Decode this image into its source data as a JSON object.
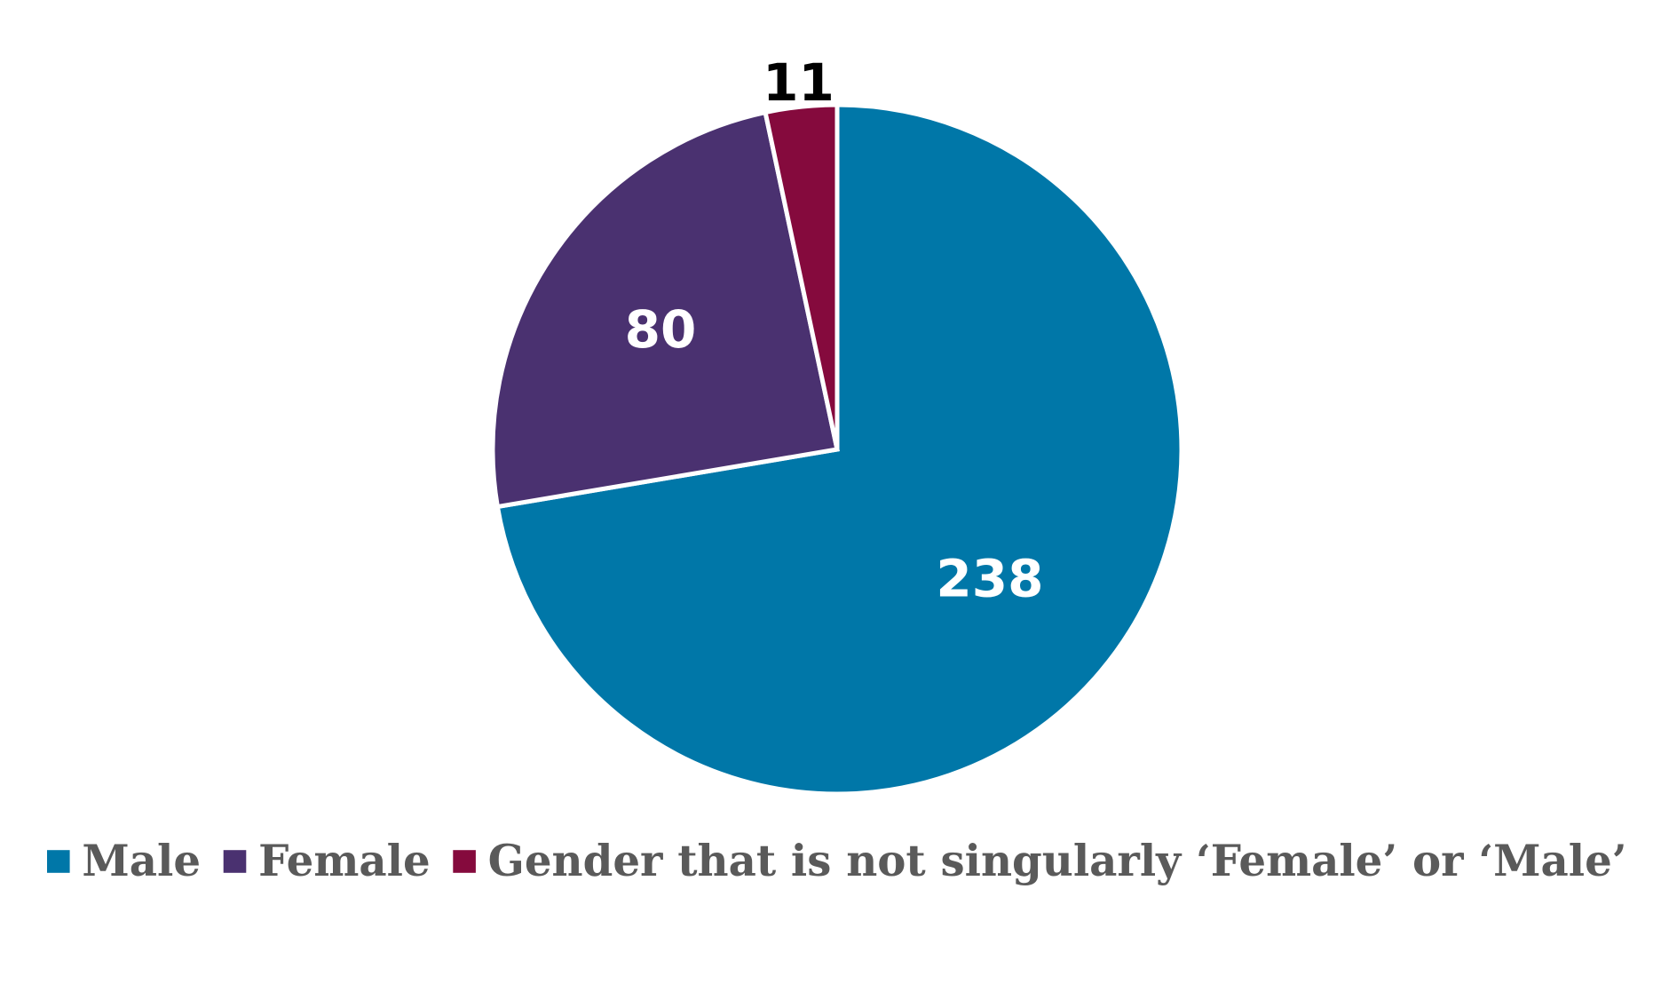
{
  "chart_data": {
    "type": "pie",
    "title": "",
    "start_angle_deg": 0,
    "direction": "clockwise",
    "legend_position": "bottom",
    "slices": [
      {
        "name": "Male",
        "value": 238,
        "color": "#0077a8",
        "label": "238",
        "label_color": "#ffffff"
      },
      {
        "name": "Female",
        "value": 80,
        "color": "#4a3170",
        "label": "80",
        "label_color": "#ffffff"
      },
      {
        "name": "Gender that is not singularly ‘Female’ or ‘Male’",
        "value": 11,
        "color": "#850a3d",
        "label": "11",
        "label_color": "#000000"
      }
    ]
  }
}
